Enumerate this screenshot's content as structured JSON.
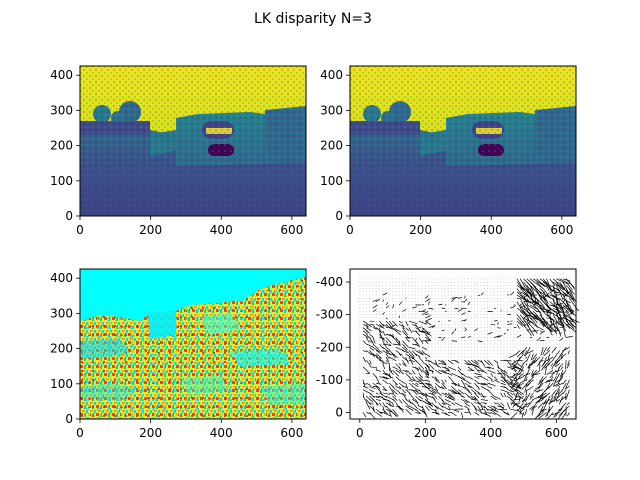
{
  "figure": {
    "title": "LK disparity N=3"
  },
  "chart_data": [
    {
      "type": "heatmap",
      "panel": "top-left",
      "content": "grayscale photo of a ruined stone gatehouse rendered with viridis colormap (sky yellow, walls teal/blue)",
      "colormap": "viridis",
      "xlim": [
        0,
        640
      ],
      "ylim": [
        426,
        0
      ],
      "xticks": [
        0,
        200,
        400,
        600
      ],
      "yticks": [
        0,
        100,
        200,
        300,
        400
      ]
    },
    {
      "type": "heatmap",
      "panel": "top-right",
      "content": "second frame of the same scene, viridis colormap",
      "colormap": "viridis",
      "xlim": [
        0,
        640
      ],
      "ylim": [
        426,
        0
      ],
      "xticks": [
        0,
        200,
        400,
        600
      ],
      "yticks": [
        0,
        100,
        200,
        300,
        400
      ]
    },
    {
      "type": "heatmap",
      "panel": "bottom-left",
      "content": "flow/disparity magnitude map, jet-like colors (cyan sky, yellow/green/red textured ground and walls)",
      "colormap": "jet",
      "xlim": [
        0,
        640
      ],
      "ylim": [
        426,
        0
      ],
      "xticks": [
        0,
        200,
        400,
        600
      ],
      "yticks": [
        0,
        100,
        200,
        300,
        400
      ]
    },
    {
      "type": "scatter",
      "panel": "bottom-right",
      "content": "quiver plot of Lucas-Kanade flow vectors",
      "xlim": [
        -30,
        660
      ],
      "ylim": [
        -440,
        20
      ],
      "xticks": [
        0,
        200,
        400,
        600
      ],
      "yticks": [
        0,
        -100,
        -200,
        -300,
        -400
      ],
      "grid_points": {
        "x_start": 0,
        "x_end": 640,
        "y_start": -10,
        "y_end": -420,
        "step": 10
      },
      "vector_clusters": [
        {
          "x": [
            480,
            650
          ],
          "y": [
            -10,
            -150
          ],
          "dx": 22,
          "dy": -24,
          "density": 0.8
        },
        {
          "x": [
            10,
            200
          ],
          "y": [
            -140,
            -420
          ],
          "dx": 14,
          "dy": -12,
          "density": 0.55
        },
        {
          "x": [
            200,
            480
          ],
          "y": [
            -260,
            -420
          ],
          "dx": 16,
          "dy": -10,
          "density": 0.5
        },
        {
          "x": [
            480,
            640
          ],
          "y": [
            -220,
            -420
          ],
          "dx": -14,
          "dy": -16,
          "density": 0.55
        },
        {
          "x": [
            40,
            640
          ],
          "y": [
            -60,
            -200
          ],
          "dx": 10,
          "dy": 4,
          "density": 0.15
        }
      ]
    }
  ]
}
